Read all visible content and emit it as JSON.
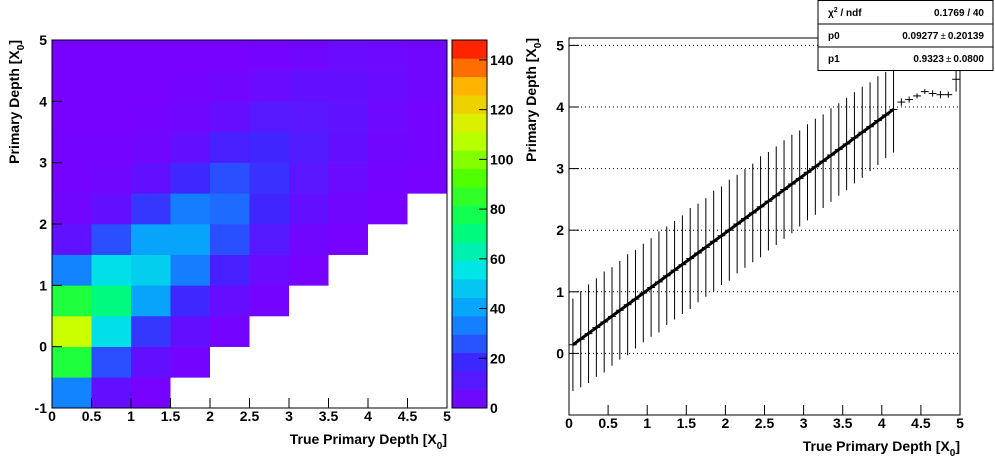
{
  "chart_data": [
    {
      "type": "heatmap",
      "x_bins": [
        0,
        0.5,
        1,
        1.5,
        2,
        2.5,
        3,
        3.5,
        4,
        4.5,
        5
      ],
      "y_bins": [
        -1,
        -0.5,
        0,
        0.5,
        1,
        1.5,
        2,
        2.5,
        3,
        3.5,
        4,
        4.5,
        5
      ],
      "z": [
        [
          34,
          7,
          1,
          0,
          0,
          0,
          0,
          0,
          0,
          0
        ],
        [
          81,
          25,
          7,
          2,
          0,
          0,
          0,
          0,
          0,
          0
        ],
        [
          110,
          54,
          21,
          7,
          2,
          0,
          0,
          0,
          0,
          0
        ],
        [
          81,
          70,
          40,
          18,
          6,
          2,
          0,
          0,
          0,
          0
        ],
        [
          34,
          54,
          50,
          33,
          15,
          5,
          1,
          0,
          0,
          0
        ],
        [
          8,
          25,
          40,
          40,
          25,
          11,
          3,
          1,
          0,
          0
        ],
        [
          3,
          7,
          21,
          33,
          30,
          17,
          7,
          3,
          1,
          0
        ],
        [
          2,
          3,
          7,
          18,
          25,
          20,
          10,
          5,
          2,
          1
        ],
        [
          2,
          2,
          3,
          7,
          15,
          17,
          12,
          7,
          3,
          2
        ],
        [
          1,
          1,
          2,
          3,
          6,
          11,
          10,
          8,
          4,
          2
        ],
        [
          1,
          1,
          1,
          2,
          3,
          5,
          7,
          7,
          5,
          3
        ],
        [
          1,
          1,
          1,
          1,
          1,
          2,
          3,
          5,
          4,
          3
        ]
      ],
      "zlim": [
        0,
        148
      ],
      "zticks": [
        0,
        20,
        40,
        60,
        80,
        100,
        120,
        140
      ],
      "colorscale": [
        "#7b00ff",
        "#3c28ff",
        "#0a96ff",
        "#00e6e6",
        "#00ff64",
        "#50ff00",
        "#d2ff00",
        "#ffb400",
        "#ff0000"
      ],
      "xlim": [
        0,
        5
      ],
      "ylim": [
        -1,
        5
      ],
      "xticks": [
        0,
        0.5,
        1,
        1.5,
        2,
        2.5,
        3,
        3.5,
        4,
        4.5,
        5
      ],
      "yticks": [
        -1,
        0,
        1,
        2,
        3,
        4,
        5
      ],
      "xlabel": [
        "True Primary Depth [X",
        "0",
        "]"
      ],
      "ylabel": [
        "Primary Depth [X",
        "0",
        "]"
      ]
    },
    {
      "type": "profile",
      "x": [
        0.05,
        0.15,
        0.25,
        0.35,
        0.45,
        0.55,
        0.65,
        0.75,
        0.85,
        0.95,
        1.05,
        1.15,
        1.25,
        1.35,
        1.45,
        1.55,
        1.65,
        1.75,
        1.85,
        1.95,
        2.05,
        2.15,
        2.25,
        2.35,
        2.45,
        2.55,
        2.65,
        2.75,
        2.85,
        2.95,
        3.05,
        3.15,
        3.25,
        3.35,
        3.45,
        3.55,
        3.65,
        3.75,
        3.85,
        3.95,
        4.05,
        4.15,
        4.25,
        4.35,
        4.45,
        4.55,
        4.65,
        4.75,
        4.85,
        4.95
      ],
      "values": [
        0.14,
        0.23,
        0.32,
        0.42,
        0.51,
        0.6,
        0.7,
        0.79,
        0.88,
        0.98,
        1.07,
        1.16,
        1.26,
        1.35,
        1.44,
        1.54,
        1.63,
        1.72,
        1.82,
        1.91,
        2.0,
        2.1,
        2.19,
        2.28,
        2.38,
        2.47,
        2.56,
        2.66,
        2.75,
        2.84,
        2.94,
        3.03,
        3.12,
        3.22,
        3.31,
        3.4,
        3.5,
        3.59,
        3.68,
        3.78,
        3.87,
        3.96,
        4.08,
        4.12,
        4.18,
        4.25,
        4.22,
        4.2,
        4.2,
        4.45
      ],
      "errors": [
        0.75,
        0.78,
        0.8,
        0.8,
        0.82,
        0.8,
        0.8,
        0.82,
        0.8,
        0.8,
        0.8,
        0.82,
        0.8,
        0.8,
        0.8,
        0.82,
        0.8,
        0.8,
        0.82,
        0.8,
        0.82,
        0.8,
        0.8,
        0.8,
        0.82,
        0.8,
        0.8,
        0.8,
        0.8,
        0.78,
        0.78,
        0.78,
        0.76,
        0.76,
        0.75,
        0.75,
        0.74,
        0.74,
        0.72,
        0.72,
        0.7,
        0.7,
        0.06,
        0.05,
        0.04,
        0.04,
        0.05,
        0.06,
        0.05,
        0.2
      ],
      "color": "#000000",
      "xlim": [
        0,
        5
      ],
      "ylim": [
        -1,
        5.12
      ],
      "xticks": [
        0,
        0.5,
        1,
        1.5,
        2,
        2.5,
        3,
        3.5,
        4,
        4.5,
        5
      ],
      "yticks": [
        0,
        1,
        2,
        3,
        4,
        5
      ],
      "grid": true,
      "fit_range": [
        0.05,
        4.15
      ],
      "xlabel": [
        "True Primary Depth [X",
        "0",
        "]"
      ],
      "ylabel": [
        "Primary Depth [X",
        "0",
        "]"
      ],
      "stats": {
        "chi2_label": [
          "χ",
          "2",
          " / ndf"
        ],
        "chi2": "0.1769 / 40",
        "pm": "±",
        "params": [
          {
            "name": "p0",
            "value": 0.09277,
            "error": 0.20139
          },
          {
            "name": "p1",
            "value": 0.9323,
            "error": {
              "value": 0.08,
              "label": "0.0800"
            }
          }
        ]
      }
    }
  ]
}
